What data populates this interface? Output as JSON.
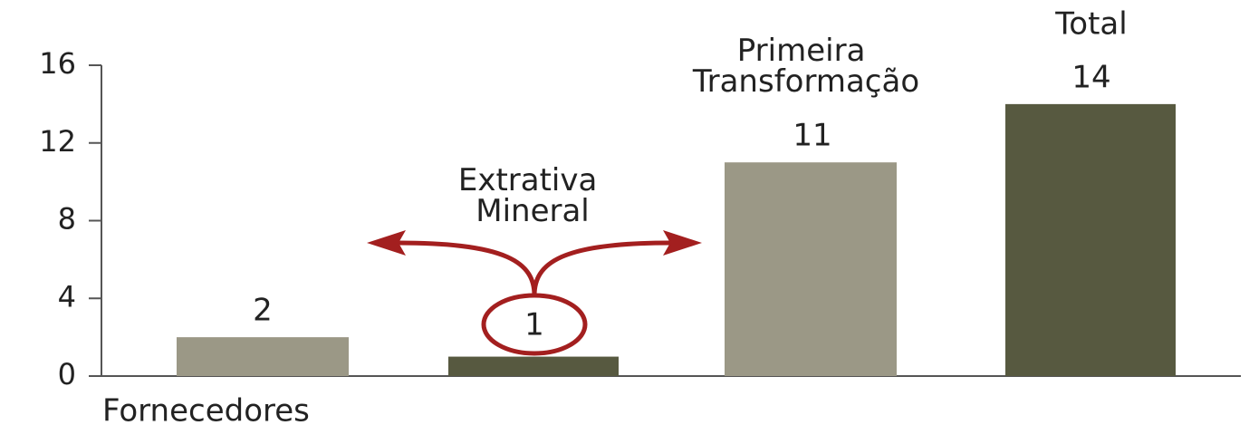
{
  "chart_data": {
    "type": "bar",
    "categories": [
      "Fornecedores",
      "Extrativa Mineral",
      "Primeira Transformação",
      "Total"
    ],
    "values": [
      2,
      1,
      11,
      14
    ],
    "colors": [
      "#9b9886",
      "#575940",
      "#9b9886",
      "#575940"
    ],
    "ylim": [
      0,
      16
    ],
    "yticks": [
      0,
      4,
      8,
      12,
      16
    ]
  }
}
